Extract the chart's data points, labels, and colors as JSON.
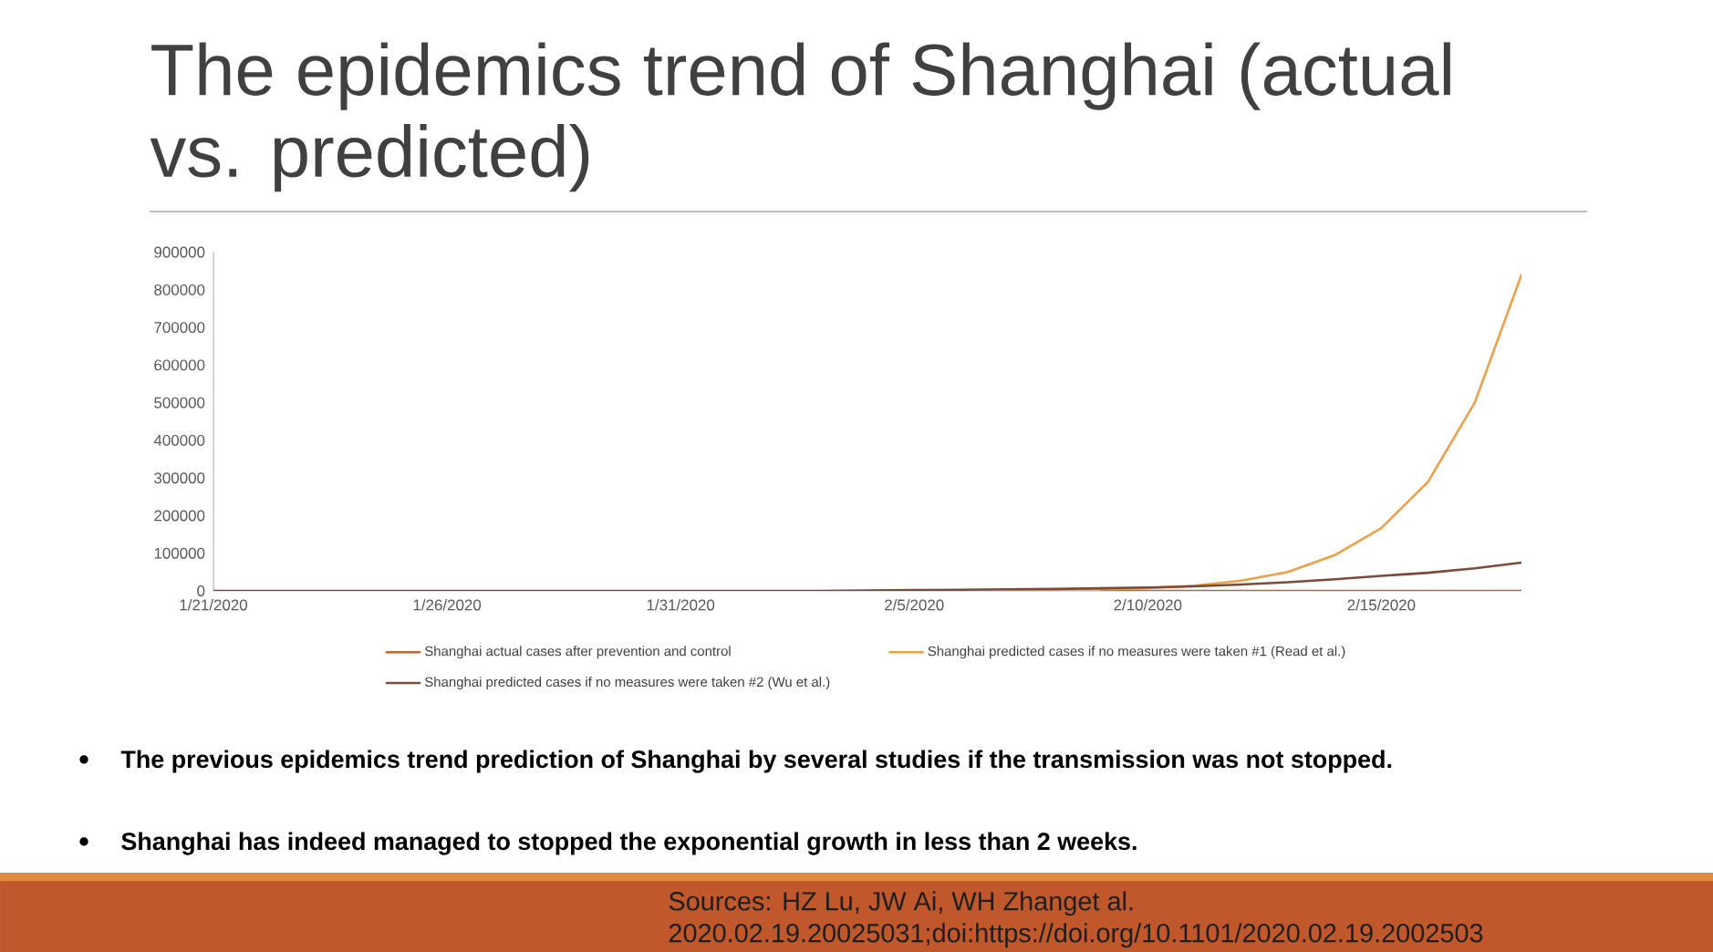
{
  "chart_data": {
    "type": "line",
    "title": "The epidemics trend of Shanghai (actual vs. predicted)",
    "x": [
      "2020-01-21",
      "2020-01-22",
      "2020-01-23",
      "2020-01-24",
      "2020-01-25",
      "2020-01-26",
      "2020-01-27",
      "2020-01-28",
      "2020-01-29",
      "2020-01-30",
      "2020-01-31",
      "2020-02-01",
      "2020-02-02",
      "2020-02-03",
      "2020-02-04",
      "2020-02-05",
      "2020-02-06",
      "2020-02-07",
      "2020-02-08",
      "2020-02-09",
      "2020-02-10",
      "2020-02-11",
      "2020-02-12",
      "2020-02-13",
      "2020-02-14",
      "2020-02-15",
      "2020-02-16",
      "2020-02-17",
      "2020-02-18"
    ],
    "series": [
      {
        "name": "Shanghai actual cases after prevention and control",
        "color": "#c0652b",
        "values": [
          null,
          null,
          null,
          null,
          null,
          null,
          null,
          null,
          null,
          null,
          null,
          null,
          null,
          null,
          null,
          null,
          null,
          null,
          null,
          0,
          0,
          0,
          0,
          0,
          0,
          0,
          0,
          0,
          0
        ]
      },
      {
        "name": "Shanghai predicted cases if no measures were taken #1 (Read et al.)",
        "color": "#eba04c",
        "values": [
          null,
          null,
          null,
          null,
          null,
          null,
          null,
          null,
          null,
          null,
          null,
          null,
          null,
          null,
          null,
          null,
          null,
          2000,
          3000,
          4000,
          7000,
          14000,
          27000,
          50000,
          95000,
          167000,
          290000,
          500000,
          840000
        ]
      },
      {
        "name": "Shanghai predicted cases if no measures were taken #2 (Wu et al.)",
        "color": "#7b4b3a",
        "values": [
          0,
          0,
          0,
          0,
          0,
          0,
          0,
          0,
          0,
          0,
          0,
          0,
          0,
          0,
          1000,
          2000,
          3000,
          4000,
          5000,
          7000,
          9000,
          12000,
          17000,
          23000,
          31000,
          40000,
          48000,
          60000,
          75000
        ]
      }
    ],
    "xlim": [
      "2020-01-21",
      "2020-02-18"
    ],
    "xticks": [
      {
        "value": "2020-01-21",
        "label": "1/21/2020"
      },
      {
        "value": "2020-01-26",
        "label": "1/26/2020"
      },
      {
        "value": "2020-01-31",
        "label": "1/31/2020"
      },
      {
        "value": "2020-02-05",
        "label": "2/5/2020"
      },
      {
        "value": "2020-02-10",
        "label": "2/10/2020"
      },
      {
        "value": "2020-02-15",
        "label": "2/15/2020"
      }
    ],
    "ylim": [
      0,
      900000
    ],
    "yticks": [
      0,
      100000,
      200000,
      300000,
      400000,
      500000,
      600000,
      700000,
      800000,
      900000
    ],
    "legend": "bottom",
    "annotations": [
      "The previous epidemics trend prediction of Shanghai by several studies if the transmission was not stopped.",
      "Shanghai has indeed managed to stopped the exponential growth in less than 2 weeks.",
      "Sources: HZ Lu, JW Ai, WH Zhanget al. 2020.02.19.20025031;doi:https://doi.org/10.1101/2020.02.19.2002503"
    ]
  }
}
